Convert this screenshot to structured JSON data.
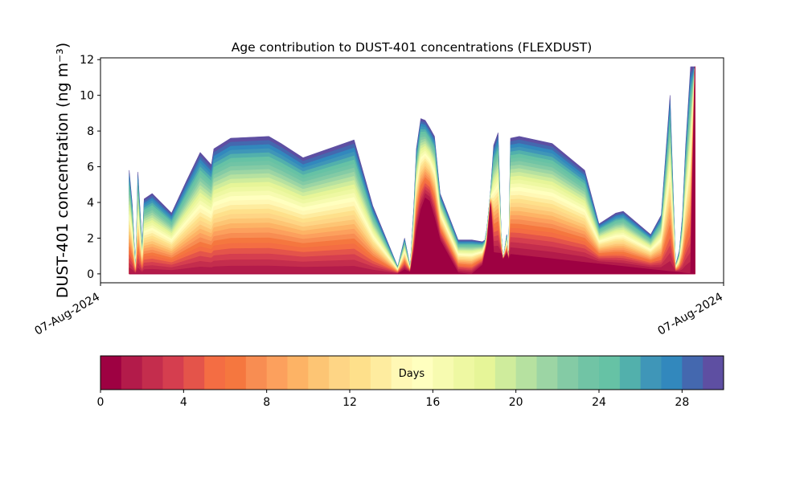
{
  "chart_data": [
    {
      "type": "area",
      "title": "Age contribution to DUST-401 concentrations (FLEXDUST)",
      "ylabel": "DUST-401 concentration (ng m⁻³)",
      "xlabel": "",
      "x_tick_labels": [
        "07-Aug-2024",
        "07-Aug-2024"
      ],
      "y_ticks": [
        0,
        2,
        4,
        6,
        8,
        10,
        12
      ],
      "ylim": [
        -0.5,
        12.1
      ],
      "stacked": true,
      "stack_axis_label": "Days",
      "stack_age_range_days": [
        0,
        30
      ],
      "stack_layer_count": 30,
      "x_relative_range": [
        0,
        1
      ],
      "x_data_range": [
        0.046,
        0.954
      ],
      "total": {
        "x": [
          0.046,
          0.051,
          0.056,
          0.058,
          0.06,
          0.063,
          0.067,
          0.07,
          0.083,
          0.114,
          0.138,
          0.16,
          0.178,
          0.182,
          0.209,
          0.27,
          0.29,
          0.325,
          0.407,
          0.437,
          0.477,
          0.488,
          0.497,
          0.503,
          0.507,
          0.514,
          0.521,
          0.528,
          0.536,
          0.545,
          0.574,
          0.591,
          0.596,
          0.613,
          0.617,
          0.62,
          0.626,
          0.631,
          0.638,
          0.643,
          0.646,
          0.652,
          0.655,
          0.658,
          0.672,
          0.725,
          0.777,
          0.8,
          0.827,
          0.839,
          0.883,
          0.9,
          0.914,
          0.918,
          0.923,
          0.929,
          0.934,
          0.939,
          0.947,
          0.954
        ],
        "y": [
          5.8,
          3.9,
          0.3,
          2.4,
          5.7,
          3.9,
          1.5,
          4.2,
          4.5,
          3.4,
          5.2,
          6.8,
          6.1,
          7.0,
          7.6,
          7.7,
          7.3,
          6.5,
          7.5,
          3.8,
          0.4,
          2.0,
          0.4,
          3.8,
          7.0,
          8.7,
          8.6,
          8.2,
          7.7,
          4.5,
          1.9,
          1.9,
          1.9,
          1.8,
          1.9,
          2.5,
          4.6,
          7.2,
          7.9,
          2.3,
          0.8,
          2.2,
          0.8,
          7.6,
          7.7,
          7.3,
          5.8,
          2.8,
          3.4,
          3.5,
          2.2,
          3.3,
          10.0,
          5.7,
          0.5,
          1.3,
          3.3,
          7.1,
          11.6,
          11.6
        ]
      },
      "young_fraction_0_1_day": {
        "x": [
          0.48,
          0.49,
          0.5,
          0.505,
          0.518,
          0.525,
          0.53,
          0.557,
          0.583,
          0.6,
          0.613,
          0.62,
          0.626,
          0.63,
          0.95,
          0.954
        ],
        "y": [
          0,
          0.3,
          0,
          2.0,
          4.3,
          4.2,
          4.0,
          0.2,
          0.0,
          0.0,
          0.5,
          1.6,
          3.9,
          1.2,
          0,
          11.6
        ]
      }
    },
    {
      "type": "colorbar",
      "label": "Days",
      "min": 0,
      "max": 30,
      "ticks": [
        0,
        4,
        8,
        12,
        16,
        20,
        24,
        28
      ],
      "colormap": "Spectral",
      "palette": [
        "#9e0142",
        "#b31b4a",
        "#c42d4d",
        "#d53e4f",
        "#e4544a",
        "#f46d43",
        "#f5773f",
        "#f88d52",
        "#fca05d",
        "#fdb365",
        "#fdc574",
        "#fed585",
        "#fee08b",
        "#feec9f",
        "#fff8b5",
        "#ffffbf",
        "#f7fbb0",
        "#eef8a2",
        "#e6f598",
        "#cfec9c",
        "#b6e1a0",
        "#9cd5a4",
        "#84cba5",
        "#71c4a5",
        "#66c2a5",
        "#52b0ac",
        "#3f96b8",
        "#3288bd",
        "#4468af",
        "#5e4fa2"
      ]
    }
  ]
}
